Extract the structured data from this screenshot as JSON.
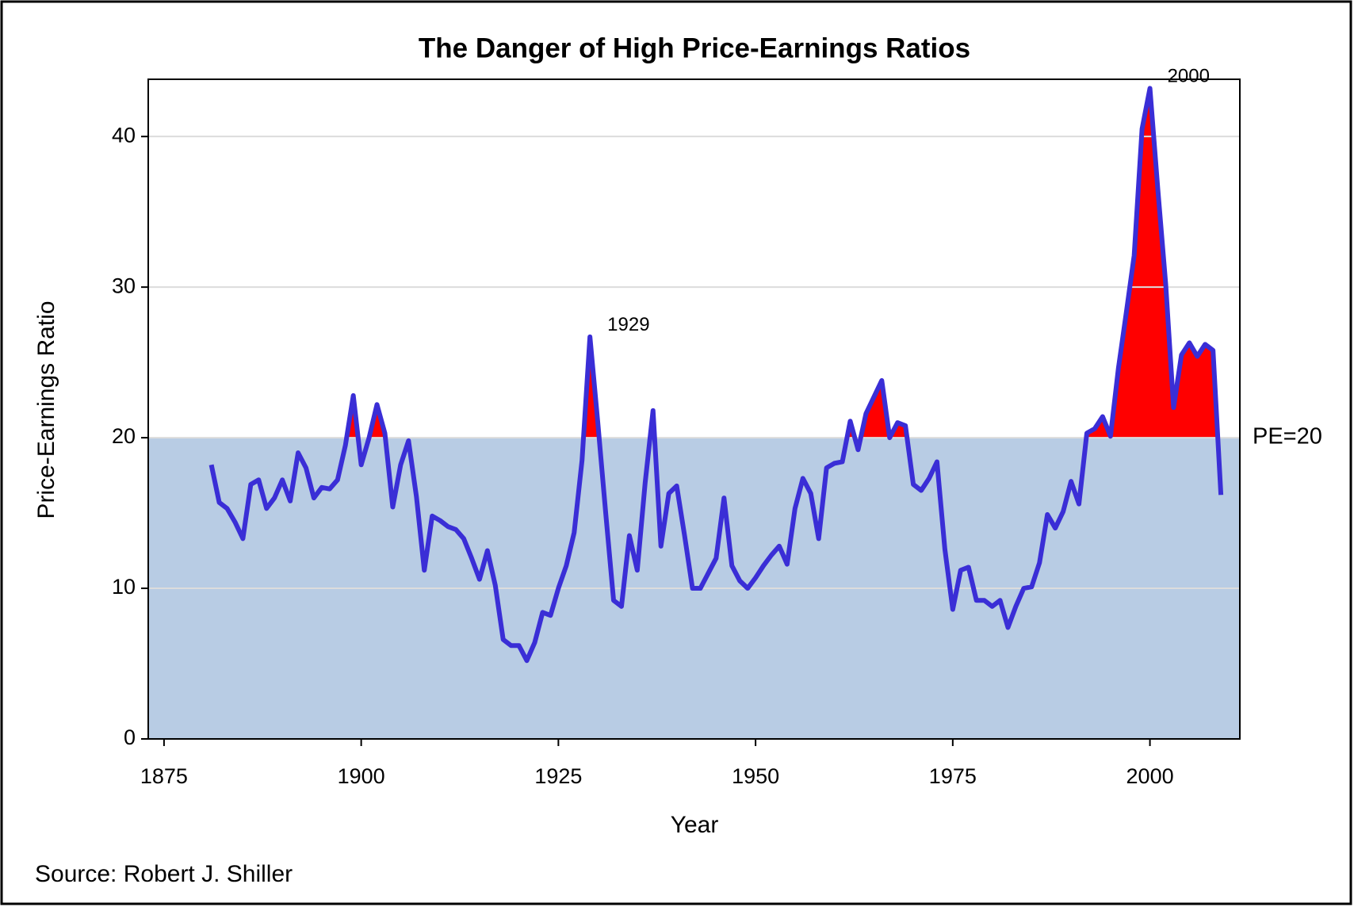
{
  "chart_data": {
    "type": "line",
    "title": "The Danger of High Price-Earnings Ratios",
    "xlabel": "Year",
    "ylabel": "Price-Earnings Ratio",
    "footnote": "Source: Robert J. Shiller",
    "threshold": 20,
    "threshold_label": "PE=20",
    "band_color": "#b8cce4",
    "above_color": "#ff0000",
    "x": [
      1881,
      1882,
      1883,
      1884,
      1885,
      1886,
      1887,
      1888,
      1889,
      1890,
      1891,
      1892,
      1893,
      1894,
      1895,
      1896,
      1897,
      1898,
      1899,
      1900,
      1901,
      1902,
      1903,
      1904,
      1905,
      1906,
      1907,
      1908,
      1909,
      1910,
      1911,
      1912,
      1913,
      1914,
      1915,
      1916,
      1917,
      1918,
      1919,
      1920,
      1921,
      1922,
      1923,
      1924,
      1925,
      1926,
      1927,
      1928,
      1929,
      1930,
      1931,
      1932,
      1933,
      1934,
      1935,
      1936,
      1937,
      1938,
      1939,
      1940,
      1941,
      1942,
      1943,
      1944,
      1945,
      1946,
      1947,
      1948,
      1949,
      1950,
      1951,
      1952,
      1953,
      1954,
      1955,
      1956,
      1957,
      1958,
      1959,
      1960,
      1961,
      1962,
      1963,
      1964,
      1965,
      1966,
      1967,
      1968,
      1969,
      1970,
      1971,
      1972,
      1973,
      1974,
      1975,
      1976,
      1977,
      1978,
      1979,
      1980,
      1981,
      1982,
      1983,
      1984,
      1985,
      1986,
      1987,
      1988,
      1989,
      1990,
      1991,
      1992,
      1993,
      1994,
      1995,
      1996,
      1997,
      1998,
      1999,
      2000,
      2001,
      2002,
      2003,
      2004,
      2005,
      2006,
      2007,
      2008,
      2009
    ],
    "series": [
      {
        "name": "PE",
        "color": "#3a2ed6",
        "values": [
          18.2,
          15.7,
          15.3,
          14.4,
          13.3,
          16.9,
          17.2,
          15.3,
          16.0,
          17.2,
          15.8,
          19.0,
          18.0,
          16.0,
          16.7,
          16.6,
          17.2,
          19.5,
          22.8,
          18.2,
          20.0,
          22.2,
          20.3,
          15.4,
          18.2,
          19.8,
          16.1,
          11.2,
          14.8,
          14.5,
          14.1,
          13.9,
          13.3,
          12.0,
          10.6,
          12.5,
          10.2,
          6.6,
          6.2,
          6.2,
          5.2,
          6.4,
          8.4,
          8.2,
          10.0,
          11.5,
          13.7,
          18.5,
          26.7,
          21.0,
          15.0,
          9.2,
          8.8,
          13.5,
          11.2,
          17.0,
          21.8,
          12.8,
          16.3,
          16.8,
          13.5,
          10.0,
          10.0,
          11.0,
          12.0,
          16.0,
          11.5,
          10.5,
          10.0,
          10.7,
          11.5,
          12.2,
          12.8,
          11.6,
          15.3,
          17.3,
          16.3,
          13.3,
          18.0,
          18.3,
          18.4,
          21.1,
          19.2,
          21.6,
          22.7,
          23.8,
          20.0,
          21.0,
          20.8,
          16.9,
          16.5,
          17.3,
          18.4,
          12.6,
          8.6,
          11.2,
          11.4,
          9.2,
          9.2,
          8.8,
          9.2,
          7.4,
          8.8,
          10.0,
          10.1,
          11.7,
          14.9,
          14.0,
          15.1,
          17.1,
          15.6,
          20.3,
          20.6,
          21.4,
          20.1,
          24.6,
          28.3,
          32.1,
          40.5,
          43.2,
          36.5,
          30.2,
          22.0,
          25.5,
          26.3,
          25.4,
          26.2,
          25.8,
          16.2
        ]
      }
    ],
    "annotations": [
      {
        "label": "1929",
        "x": 1929
      },
      {
        "label": "2000",
        "x": 2000
      }
    ],
    "xlim": [
      1873,
      2011.4
    ],
    "ylim": [
      0,
      43.8
    ],
    "xticks": [
      1875,
      1900,
      1925,
      1950,
      1975,
      2000
    ],
    "yticks": [
      0,
      10,
      20,
      30,
      40
    ],
    "grid": true
  }
}
